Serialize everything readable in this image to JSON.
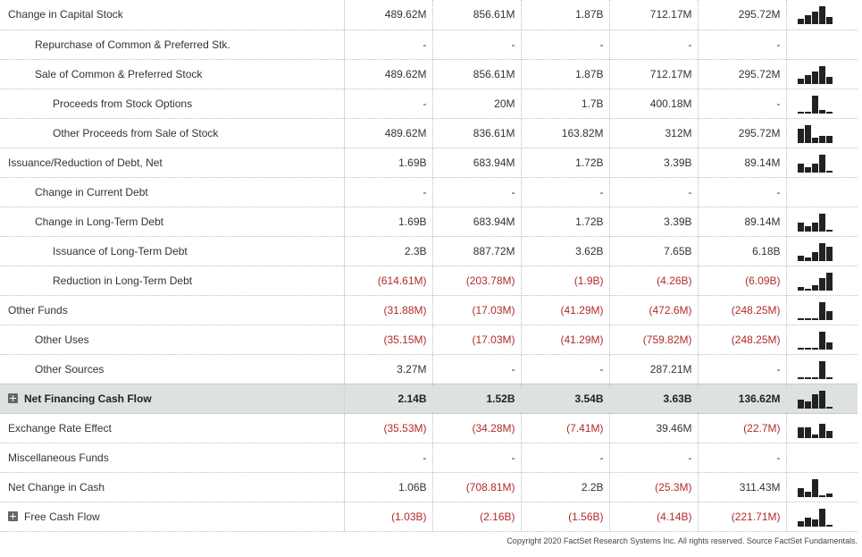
{
  "rows": [
    {
      "label": "Change in Capital Stock",
      "indent": 0,
      "values": [
        "489.62M",
        "856.61M",
        "1.87B",
        "712.17M",
        "295.72M"
      ],
      "spark": [
        3,
        5,
        7,
        10,
        4
      ]
    },
    {
      "label": "Repurchase of Common & Preferred Stk.",
      "indent": 1,
      "values": [
        "-",
        "-",
        "-",
        "-",
        "-"
      ],
      "spark": null
    },
    {
      "label": "Sale of Common & Preferred Stock",
      "indent": 1,
      "values": [
        "489.62M",
        "856.61M",
        "1.87B",
        "712.17M",
        "295.72M"
      ],
      "spark": [
        3,
        5,
        7,
        10,
        4
      ]
    },
    {
      "label": "Proceeds from Stock Options",
      "indent": 2,
      "values": [
        "-",
        "20M",
        "1.7B",
        "400.18M",
        "-"
      ],
      "spark": [
        0,
        0,
        10,
        2,
        0
      ]
    },
    {
      "label": "Other Proceeds from Sale of Stock",
      "indent": 2,
      "values": [
        "489.62M",
        "836.61M",
        "163.82M",
        "312M",
        "295.72M"
      ],
      "spark": [
        8,
        10,
        3,
        4,
        4
      ]
    },
    {
      "label": "Issuance/Reduction of Debt, Net",
      "indent": 0,
      "values": [
        "1.69B",
        "683.94M",
        "1.72B",
        "3.39B",
        "89.14M"
      ],
      "spark": [
        5,
        3,
        5,
        10,
        0
      ]
    },
    {
      "label": "Change in Current Debt",
      "indent": 1,
      "values": [
        "-",
        "-",
        "-",
        "-",
        "-"
      ],
      "spark": null
    },
    {
      "label": "Change in Long-Term Debt",
      "indent": 1,
      "values": [
        "1.69B",
        "683.94M",
        "1.72B",
        "3.39B",
        "89.14M"
      ],
      "spark": [
        5,
        3,
        5,
        10,
        0
      ]
    },
    {
      "label": "Issuance of Long-Term Debt",
      "indent": 2,
      "values": [
        "2.3B",
        "887.72M",
        "3.62B",
        "7.65B",
        "6.18B"
      ],
      "spark": [
        3,
        2,
        5,
        10,
        8
      ]
    },
    {
      "label": "Reduction in Long-Term Debt",
      "indent": 2,
      "values": [
        "(614.61M)",
        "(203.78M)",
        "(1.9B)",
        "(4.26B)",
        "(6.09B)"
      ],
      "spark": [
        2,
        1,
        3,
        7,
        10
      ]
    },
    {
      "label": "Other Funds",
      "indent": 0,
      "values": [
        "(31.88M)",
        "(17.03M)",
        "(41.29M)",
        "(472.6M)",
        "(248.25M)"
      ],
      "spark": [
        1,
        1,
        1,
        10,
        5
      ]
    },
    {
      "label": "Other Uses",
      "indent": 1,
      "values": [
        "(35.15M)",
        "(17.03M)",
        "(41.29M)",
        "(759.82M)",
        "(248.25M)"
      ],
      "spark": [
        1,
        1,
        1,
        10,
        4
      ]
    },
    {
      "label": "Other Sources",
      "indent": 1,
      "values": [
        "3.27M",
        "-",
        "-",
        "287.21M",
        "-"
      ],
      "spark": [
        0,
        0,
        0,
        10,
        0
      ]
    },
    {
      "label": "Net Financing Cash Flow",
      "indent": 0,
      "highlight": true,
      "expandable": true,
      "values": [
        "2.14B",
        "1.52B",
        "3.54B",
        "3.63B",
        "136.62M"
      ],
      "spark": [
        5,
        4,
        8,
        10,
        1
      ]
    },
    {
      "label": "Exchange Rate Effect",
      "indent": 0,
      "values": [
        "(35.53M)",
        "(34.28M)",
        "(7.41M)",
        "39.46M",
        "(22.7M)"
      ],
      "spark": [
        6,
        6,
        2,
        8,
        4
      ]
    },
    {
      "label": "Miscellaneous Funds",
      "indent": 0,
      "values": [
        "-",
        "-",
        "-",
        "-",
        "-"
      ],
      "spark": null
    },
    {
      "label": "Net Change in Cash",
      "indent": 0,
      "values": [
        "1.06B",
        "(708.81M)",
        "2.2B",
        "(25.3M)",
        "311.43M"
      ],
      "spark": [
        5,
        3,
        10,
        1,
        2
      ]
    },
    {
      "label": "Free Cash Flow",
      "indent": 0,
      "expandable": true,
      "values": [
        "(1.03B)",
        "(2.16B)",
        "(1.56B)",
        "(4.14B)",
        "(221.71M)"
      ],
      "spark": [
        3,
        5,
        4,
        10,
        1
      ]
    }
  ],
  "footer": "Copyright 2020 FactSet Research Systems Inc. All rights reserved. Source FactSet Fundamentals."
}
